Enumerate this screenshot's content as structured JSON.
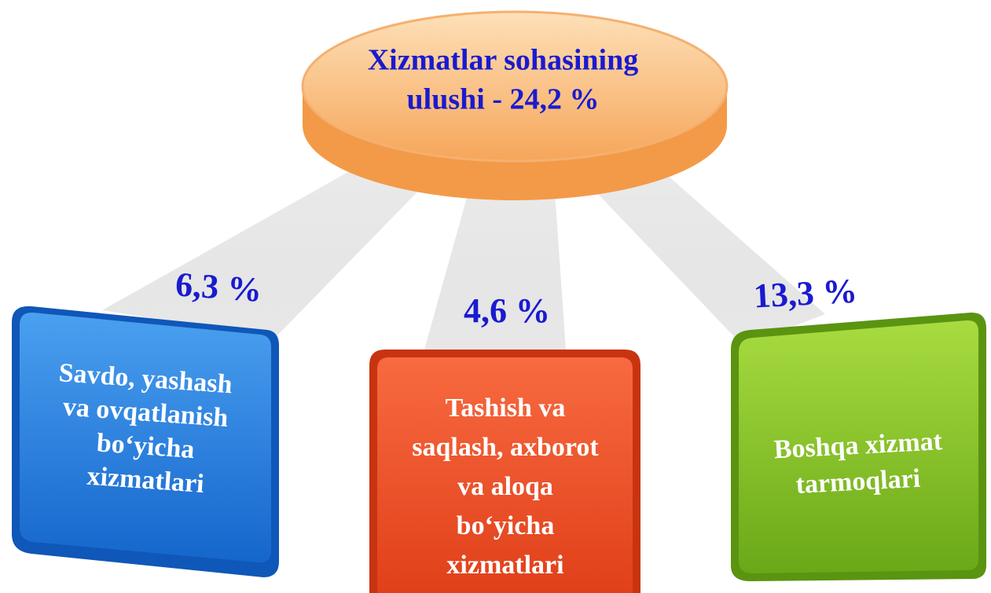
{
  "header": {
    "lines": [
      "Xizmatlar sohasining",
      "ulushi - 24,2 %"
    ]
  },
  "nodes": [
    {
      "share": "6,3 %",
      "lines": [
        "Savdo, yashash",
        "va ovqatlanish",
        "bo‘yicha",
        "xizmatlari"
      ]
    },
    {
      "share": "4,6 %",
      "lines": [
        "Tashish va",
        "saqlash, axborot",
        "va aloqa",
        "bo‘yicha",
        "xizmatlari"
      ]
    },
    {
      "share": "13,3 %",
      "lines": [
        "Boshqa xizmat",
        "tarmoqlari"
      ]
    }
  ]
}
